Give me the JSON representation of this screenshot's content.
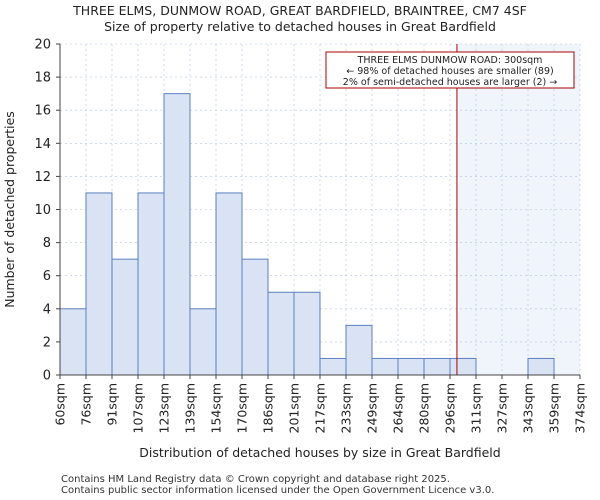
{
  "header": {
    "title": "THREE ELMS, DUNMOW ROAD, GREAT BARDFIELD, BRAINTREE, CM7 4SF",
    "subtitle": "Size of property relative to detached houses in Great Bardfield"
  },
  "footer": {
    "line1": "Contains HM Land Registry data © Crown copyright and database right 2025.",
    "line2": "Contains public sector information licensed under the Open Government Licence v3.0."
  },
  "chart_data": {
    "type": "bar",
    "xlabel": "Distribution of detached houses by size in Great Bardfield",
    "ylabel": "Number of detached properties",
    "ylim": [
      0,
      20
    ],
    "yticks": [
      0,
      2,
      4,
      6,
      8,
      10,
      12,
      14,
      16,
      18,
      20
    ],
    "bin_edges": [
      "60sqm",
      "76sqm",
      "91sqm",
      "107sqm",
      "123sqm",
      "139sqm",
      "154sqm",
      "170sqm",
      "186sqm",
      "201sqm",
      "217sqm",
      "233sqm",
      "249sqm",
      "264sqm",
      "280sqm",
      "296sqm",
      "311sqm",
      "327sqm",
      "343sqm",
      "359sqm",
      "374sqm"
    ],
    "values": [
      4,
      11,
      7,
      11,
      17,
      4,
      11,
      7,
      5,
      5,
      1,
      3,
      1,
      1,
      1,
      1,
      0,
      0,
      1,
      0
    ],
    "marker": {
      "value_sqm": 300,
      "label_lines": [
        "THREE ELMS DUNMOW ROAD: 300sqm",
        "← 98% of detached houses are smaller (89)",
        "2% of semi-detached houses are larger (2) →"
      ]
    },
    "colors": {
      "bar_fill": "#dae3f3",
      "bar_stroke": "#5b7fc0",
      "marker_line": "#aa0000",
      "highlight_region": "#f0f4fb",
      "grid": "#b0c4de"
    },
    "grid": true
  }
}
